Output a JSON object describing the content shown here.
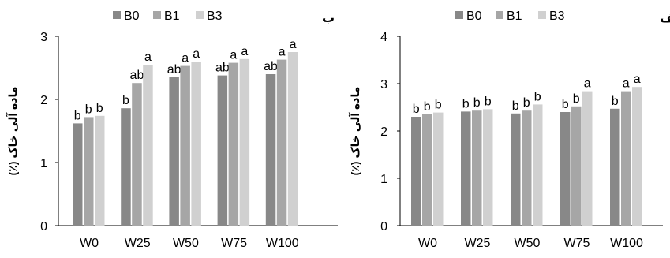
{
  "chart_data": [
    {
      "type": "bar",
      "panel_label": "ب",
      "ylabel": "ماده آلی خاک (٪)",
      "categories": [
        "W0",
        "W25",
        "W50",
        "W75",
        "W100"
      ],
      "ylim": [
        0,
        3
      ],
      "yticks": [
        "0",
        "1",
        "2",
        "3"
      ],
      "grid": false,
      "legend_position": "top",
      "series": [
        {
          "name": "B0",
          "color": "#888888",
          "values": [
            1.62,
            1.86,
            2.35,
            2.38,
            2.4
          ],
          "labels": [
            "b",
            "b",
            "ab",
            "ab",
            "ab"
          ]
        },
        {
          "name": "B1",
          "color": "#a6a6a6",
          "values": [
            1.72,
            2.26,
            2.53,
            2.58,
            2.63
          ],
          "labels": [
            "b",
            "ab",
            "a",
            "a",
            "a"
          ]
        },
        {
          "name": "B3",
          "color": "#d0d0d0",
          "values": [
            1.74,
            2.55,
            2.6,
            2.64,
            2.75
          ],
          "labels": [
            "b",
            "a",
            "a",
            "a",
            "a"
          ]
        }
      ]
    },
    {
      "type": "bar",
      "panel_label": "لف",
      "ylabel": "ماده آلی خاک (٪)",
      "categories": [
        "W0",
        "W25",
        "W50",
        "W75",
        "W100"
      ],
      "ylim": [
        0,
        4
      ],
      "yticks": [
        "0",
        "1",
        "2",
        "3",
        "4"
      ],
      "grid": false,
      "legend_position": "top",
      "series": [
        {
          "name": "B0",
          "color": "#888888",
          "values": [
            2.3,
            2.41,
            2.37,
            2.4,
            2.47
          ],
          "labels": [
            "b",
            "b",
            "b",
            "b",
            "b"
          ]
        },
        {
          "name": "B1",
          "color": "#a6a6a6",
          "values": [
            2.35,
            2.43,
            2.43,
            2.52,
            2.84
          ],
          "labels": [
            "b",
            "b",
            "b",
            "b",
            "a"
          ]
        },
        {
          "name": "B3",
          "color": "#d0d0d0",
          "values": [
            2.39,
            2.46,
            2.56,
            2.84,
            2.93
          ],
          "labels": [
            "b",
            "b",
            "b",
            "a",
            "a"
          ]
        }
      ]
    }
  ]
}
